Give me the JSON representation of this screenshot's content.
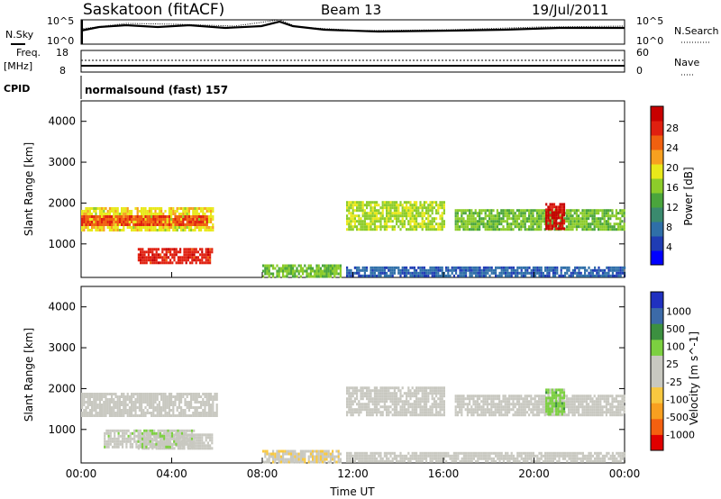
{
  "header": {
    "station": "Saskatoon (fitACF)",
    "beam": "Beam 13",
    "date": "19/Jul/2011"
  },
  "top_panels": {
    "nsky_label": "N.Sky",
    "nsky_ticks": [
      "10^5",
      "10^0"
    ],
    "nsearch_label": "N.Search",
    "nsearch_ticks": [
      "10^5",
      "10^0"
    ],
    "freq_label": "Freq.",
    "freq_unit": "[MHz]",
    "freq_ticks": [
      "18",
      "8"
    ],
    "nave_label": "Nave",
    "nave_ticks": [
      "60",
      "0"
    ],
    "cpid_label": "CPID",
    "cpid_text": "normalsound (fast) 157"
  },
  "colors": {
    "power_scale": [
      "#0000ff",
      "#1f3cb4",
      "#2f6fa8",
      "#3a8a6e",
      "#4aa53c",
      "#8ccc2a",
      "#e8e81a",
      "#f7a020",
      "#f06010",
      "#e02010",
      "#c80000"
    ],
    "velocity_scale": [
      "#e00000",
      "#f46010",
      "#f8a020",
      "#f8c840",
      "#c8c8c0",
      "#c8c8c0",
      "#7cd040",
      "#3c9040",
      "#3c6aa8",
      "#2030c0"
    ]
  },
  "chart_data": [
    {
      "type": "heatmap",
      "title": "",
      "xlabel": "Time UT",
      "ylabel": "Slant Range [km]",
      "xlim": [
        "00:00",
        "24:00"
      ],
      "ylim": [
        180,
        4500
      ],
      "x_tick_labels": [
        "00:00",
        "04:00",
        "08:00",
        "12:00",
        "16:00",
        "20:00",
        "00:00"
      ],
      "y_tick_labels": [
        "4000",
        "3000",
        "2000",
        "1000"
      ],
      "colorbar": {
        "label": "Power [dB]",
        "ticks": [
          "28",
          "24",
          "20",
          "16",
          "12",
          "8",
          "4"
        ],
        "range": [
          0,
          30
        ]
      },
      "regions": [
        {
          "t": [
            0.0,
            5.8
          ],
          "range_km": [
            1350,
            1900
          ],
          "value": 18
        },
        {
          "t": [
            0.0,
            5.6
          ],
          "range_km": [
            1500,
            1700
          ],
          "value": 24
        },
        {
          "t": [
            2.5,
            5.8
          ],
          "range_km": [
            550,
            900
          ],
          "value": 26
        },
        {
          "t": [
            8.0,
            11.5
          ],
          "range_km": [
            180,
            500
          ],
          "value": 14
        },
        {
          "t": [
            11.7,
            16.0
          ],
          "range_km": [
            1350,
            2050
          ],
          "value": 16
        },
        {
          "t": [
            16.5,
            24.0
          ],
          "range_km": [
            1350,
            1850
          ],
          "value": 14
        },
        {
          "t": [
            20.5,
            21.3
          ],
          "range_km": [
            1400,
            2000
          ],
          "value": 28
        },
        {
          "t": [
            11.7,
            24.0
          ],
          "range_km": [
            200,
            450
          ],
          "value": 6
        }
      ]
    },
    {
      "type": "heatmap",
      "title": "",
      "xlabel": "Time UT",
      "ylabel": "Slant Range [km]",
      "xlim": [
        "00:00",
        "24:00"
      ],
      "ylim": [
        180,
        4500
      ],
      "x_tick_labels": [
        "00:00",
        "04:00",
        "08:00",
        "12:00",
        "16:00",
        "20:00",
        "00:00"
      ],
      "y_tick_labels": [
        "4000",
        "3000",
        "2000",
        "1000"
      ],
      "colorbar": {
        "label": "Velocity [m s^-1]",
        "ticks": [
          "1000",
          "500",
          "100",
          "25",
          "-25",
          "-100",
          "-500",
          "-1000"
        ],
        "range": [
          -1000,
          1000
        ]
      },
      "regions": [
        {
          "t": [
            0.0,
            6.0
          ],
          "range_km": [
            1350,
            1900
          ],
          "value": 0
        },
        {
          "t": [
            2.5,
            5.8
          ],
          "range_km": [
            550,
            900
          ],
          "value": 0
        },
        {
          "t": [
            8.0,
            11.5
          ],
          "range_km": [
            180,
            500
          ],
          "value": -150
        },
        {
          "t": [
            11.7,
            16.0
          ],
          "range_km": [
            1350,
            2050
          ],
          "value": 0
        },
        {
          "t": [
            16.5,
            24.0
          ],
          "range_km": [
            1350,
            1850
          ],
          "value": 0
        },
        {
          "t": [
            20.5,
            21.3
          ],
          "range_km": [
            1400,
            2000
          ],
          "value": 300
        },
        {
          "t": [
            11.7,
            24.0
          ],
          "range_km": [
            200,
            450
          ],
          "value": -60
        },
        {
          "t": [
            1.0,
            5.0
          ],
          "range_km": [
            600,
            1000
          ],
          "value": 120
        }
      ]
    }
  ]
}
